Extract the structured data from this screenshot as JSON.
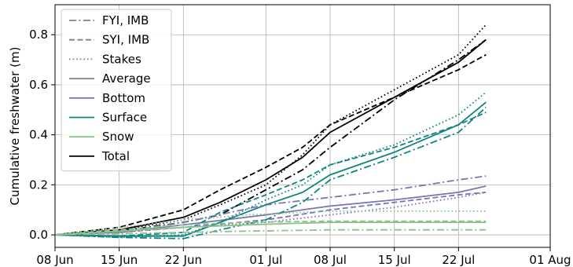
{
  "chart_data": {
    "type": "line",
    "title": "",
    "xlabel": "",
    "ylabel": "Cumulative freshwater (m)",
    "x_ticks": [
      "08 Jun",
      "15 Jun",
      "22 Jun",
      "01 Jul",
      "08 Jul",
      "15 Jul",
      "22 Jul",
      "01 Aug"
    ],
    "x_tick_dates": [
      "2020-06-08",
      "2020-06-15",
      "2020-06-22",
      "2020-07-01",
      "2020-07-08",
      "2020-07-15",
      "2020-07-22",
      "2020-08-01"
    ],
    "xlim": [
      "2020-06-08",
      "2020-08-01"
    ],
    "y_ticks": [
      0.0,
      0.2,
      0.4,
      0.6,
      0.8
    ],
    "y_tick_labels": [
      "0.0",
      "0.2",
      "0.4",
      "0.6",
      "0.8"
    ],
    "ylim": [
      -0.05,
      0.92
    ],
    "grid": true,
    "legend_position": "top-left",
    "colors": {
      "average": "#808080",
      "bottom": "#7b74b5",
      "surface": "#0f8580",
      "snow": "#8cc28c",
      "total": "#000000"
    },
    "legend": [
      {
        "label": "FYI, IMB",
        "style": "dashdot",
        "color": "#808080"
      },
      {
        "label": "SYI, IMB",
        "style": "dashed",
        "color": "#808080"
      },
      {
        "label": "Stakes",
        "style": "dotted",
        "color": "#808080"
      },
      {
        "label": "Average",
        "style": "solid",
        "color": "#808080"
      },
      {
        "label": "Bottom",
        "style": "solid",
        "color": "#7b74b5"
      },
      {
        "label": "Surface",
        "style": "solid",
        "color": "#0f8580"
      },
      {
        "label": "Snow",
        "style": "solid",
        "color": "#8cc28c"
      },
      {
        "label": "Total",
        "style": "solid",
        "color": "#000000"
      }
    ],
    "series": [
      {
        "component": "Total",
        "site": "FYI, IMB",
        "color": "#000000",
        "style": "dashdot",
        "x": [
          "2020-06-08",
          "2020-06-15",
          "2020-06-22",
          "2020-06-26",
          "2020-07-01",
          "2020-07-05",
          "2020-07-08",
          "2020-07-15",
          "2020-07-22",
          "2020-07-25"
        ],
        "y": [
          0.0,
          0.015,
          0.05,
          0.08,
          0.18,
          0.26,
          0.35,
          0.54,
          0.7,
          0.78
        ]
      },
      {
        "component": "Total",
        "site": "SYI, IMB",
        "color": "#000000",
        "style": "dashed",
        "x": [
          "2020-06-08",
          "2020-06-15",
          "2020-06-22",
          "2020-06-26",
          "2020-07-01",
          "2020-07-05",
          "2020-07-08",
          "2020-07-15",
          "2020-07-22",
          "2020-07-25"
        ],
        "y": [
          0.0,
          0.03,
          0.1,
          0.18,
          0.27,
          0.35,
          0.44,
          0.55,
          0.66,
          0.72
        ]
      },
      {
        "component": "Total",
        "site": "Stakes",
        "color": "#000000",
        "style": "dotted",
        "x": [
          "2020-06-08",
          "2020-06-15",
          "2020-06-22",
          "2020-06-26",
          "2020-07-01",
          "2020-07-05",
          "2020-07-08",
          "2020-07-15",
          "2020-07-22",
          "2020-07-25"
        ],
        "y": [
          0.0,
          0.02,
          0.06,
          0.12,
          0.2,
          0.32,
          0.44,
          0.58,
          0.72,
          0.84
        ]
      },
      {
        "component": "Total",
        "site": "Average",
        "color": "#000000",
        "style": "solid",
        "x": [
          "2020-06-08",
          "2020-06-15",
          "2020-06-22",
          "2020-06-26",
          "2020-07-01",
          "2020-07-05",
          "2020-07-08",
          "2020-07-15",
          "2020-07-22",
          "2020-07-25"
        ],
        "y": [
          0.0,
          0.02,
          0.07,
          0.13,
          0.22,
          0.31,
          0.41,
          0.55,
          0.69,
          0.78
        ]
      },
      {
        "component": "Bottom",
        "site": "FYI, IMB",
        "color": "#7b74b5",
        "style": "dashdot",
        "x": [
          "2020-06-08",
          "2020-06-15",
          "2020-06-22",
          "2020-07-01",
          "2020-07-08",
          "2020-07-15",
          "2020-07-22",
          "2020-07-25"
        ],
        "y": [
          0.0,
          0.01,
          0.05,
          0.12,
          0.15,
          0.18,
          0.22,
          0.235
        ]
      },
      {
        "component": "Bottom",
        "site": "SYI, IMB",
        "color": "#7b74b5",
        "style": "dashed",
        "x": [
          "2020-06-08",
          "2020-06-15",
          "2020-06-22",
          "2020-07-01",
          "2020-07-08",
          "2020-07-15",
          "2020-07-22",
          "2020-07-25"
        ],
        "y": [
          0.0,
          0.01,
          0.03,
          0.06,
          0.1,
          0.13,
          0.16,
          0.17
        ]
      },
      {
        "component": "Bottom",
        "site": "Stakes",
        "color": "#7b74b5",
        "style": "dotted",
        "x": [
          "2020-06-08",
          "2020-06-15",
          "2020-06-22",
          "2020-07-01",
          "2020-07-08",
          "2020-07-15",
          "2020-07-22",
          "2020-07-25"
        ],
        "y": [
          0.0,
          0.01,
          0.03,
          0.05,
          0.08,
          0.11,
          0.15,
          0.17
        ]
      },
      {
        "component": "Bottom",
        "site": "Average",
        "color": "#7b74b5",
        "style": "solid",
        "x": [
          "2020-06-08",
          "2020-06-15",
          "2020-06-22",
          "2020-07-01",
          "2020-07-08",
          "2020-07-15",
          "2020-07-22",
          "2020-07-25"
        ],
        "y": [
          0.0,
          0.01,
          0.04,
          0.08,
          0.115,
          0.14,
          0.17,
          0.195
        ]
      },
      {
        "component": "Surface",
        "site": "FYI, IMB",
        "color": "#0f8580",
        "style": "dashdot",
        "x": [
          "2020-06-08",
          "2020-06-15",
          "2020-06-22",
          "2020-06-26",
          "2020-07-01",
          "2020-07-05",
          "2020-07-08",
          "2020-07-15",
          "2020-07-22",
          "2020-07-25"
        ],
        "y": [
          0.0,
          -0.01,
          -0.015,
          0.02,
          0.06,
          0.13,
          0.22,
          0.31,
          0.41,
          0.51
        ]
      },
      {
        "component": "Surface",
        "site": "SYI, IMB",
        "color": "#0f8580",
        "style": "dashed",
        "x": [
          "2020-06-08",
          "2020-06-15",
          "2020-06-22",
          "2020-06-26",
          "2020-07-01",
          "2020-07-05",
          "2020-07-08",
          "2020-07-15",
          "2020-07-22",
          "2020-07-25"
        ],
        "y": [
          0.0,
          -0.005,
          0.01,
          0.09,
          0.16,
          0.22,
          0.28,
          0.35,
          0.44,
          0.49
        ]
      },
      {
        "component": "Surface",
        "site": "Stakes",
        "color": "#0f8580",
        "style": "dotted",
        "x": [
          "2020-06-08",
          "2020-06-15",
          "2020-06-22",
          "2020-06-26",
          "2020-07-01",
          "2020-07-05",
          "2020-07-08",
          "2020-07-15",
          "2020-07-22",
          "2020-07-25"
        ],
        "y": [
          0.0,
          -0.01,
          0.0,
          0.05,
          0.14,
          0.2,
          0.28,
          0.36,
          0.48,
          0.57
        ]
      },
      {
        "component": "Surface",
        "site": "Average",
        "color": "#0f8580",
        "style": "solid",
        "x": [
          "2020-06-08",
          "2020-06-15",
          "2020-06-22",
          "2020-06-26",
          "2020-07-01",
          "2020-07-05",
          "2020-07-08",
          "2020-07-15",
          "2020-07-22",
          "2020-07-25"
        ],
        "y": [
          0.0,
          -0.005,
          -0.005,
          0.05,
          0.12,
          0.17,
          0.24,
          0.33,
          0.44,
          0.53
        ]
      },
      {
        "component": "Snow",
        "site": "FYI, IMB",
        "color": "#8cc28c",
        "style": "dashdot",
        "x": [
          "2020-06-08",
          "2020-06-15",
          "2020-06-22",
          "2020-06-29",
          "2020-07-08",
          "2020-07-25"
        ],
        "y": [
          0.0,
          0.005,
          0.01,
          0.015,
          0.02,
          0.02
        ]
      },
      {
        "component": "Snow",
        "site": "SYI, IMB",
        "color": "#8cc28c",
        "style": "dashed",
        "x": [
          "2020-06-08",
          "2020-06-15",
          "2020-06-22",
          "2020-06-29",
          "2020-07-08",
          "2020-07-25"
        ],
        "y": [
          0.0,
          0.02,
          0.04,
          0.05,
          0.055,
          0.055
        ]
      },
      {
        "component": "Snow",
        "site": "Stakes",
        "color": "#8cc28c",
        "style": "dotted",
        "x": [
          "2020-06-08",
          "2020-06-15",
          "2020-06-22",
          "2020-06-29",
          "2020-07-08",
          "2020-07-25"
        ],
        "y": [
          0.0,
          0.03,
          0.06,
          0.08,
          0.095,
          0.095
        ]
      },
      {
        "component": "Snow",
        "site": "Average",
        "color": "#8cc28c",
        "style": "solid",
        "x": [
          "2020-06-08",
          "2020-06-15",
          "2020-06-22",
          "2020-06-29",
          "2020-07-08",
          "2020-07-25"
        ],
        "y": [
          0.0,
          0.015,
          0.03,
          0.04,
          0.05,
          0.05
        ]
      }
    ]
  }
}
